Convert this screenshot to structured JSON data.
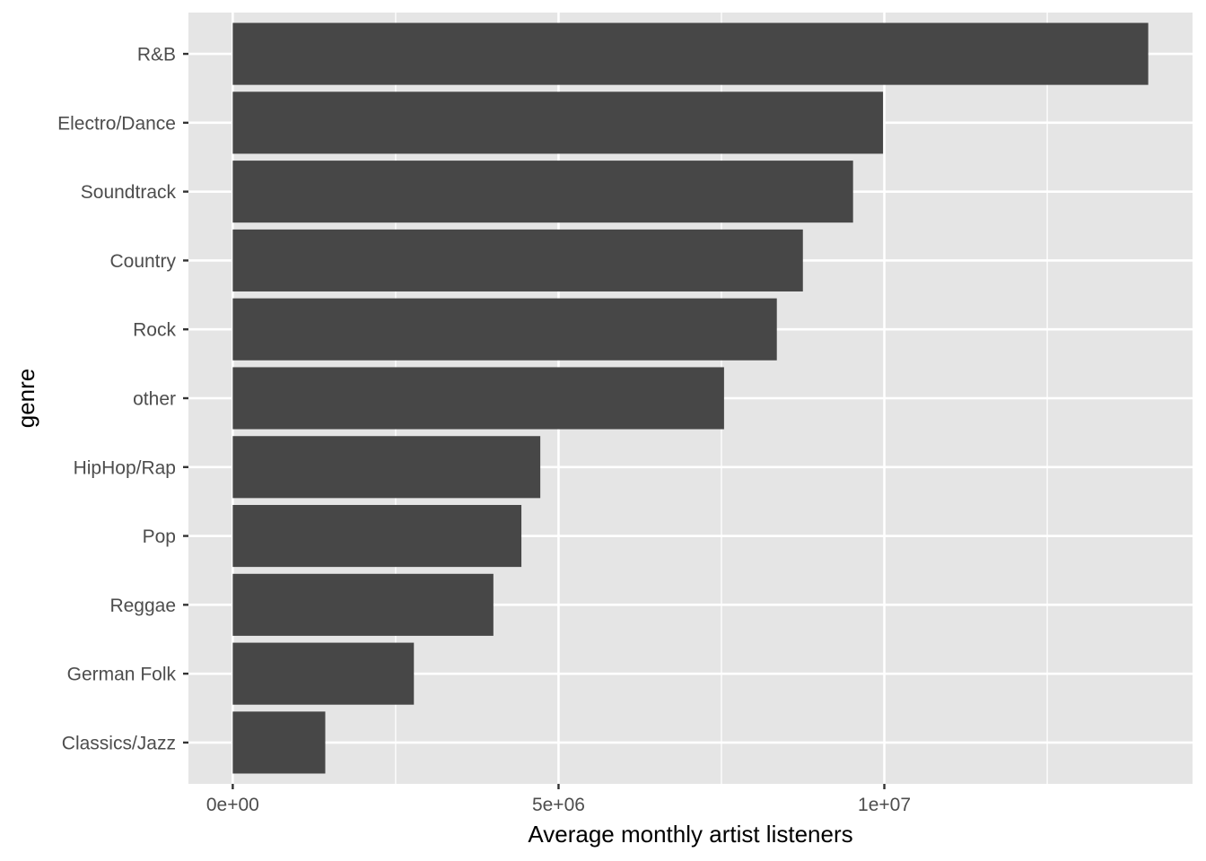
{
  "chart_data": {
    "type": "bar",
    "orientation": "horizontal",
    "title": "",
    "xlabel": "Average monthly artist listeners",
    "ylabel": "genre",
    "categories": [
      "R&B",
      "Electro/Dance",
      "Soundtrack",
      "Country",
      "Rock",
      "other",
      "HipHop/Rap",
      "Pop",
      "Reggae",
      "German Folk",
      "Classics/Jazz"
    ],
    "values": [
      14050000,
      9980000,
      9520000,
      8750000,
      8350000,
      7540000,
      4720000,
      4430000,
      4000000,
      2780000,
      1420000
    ],
    "xlim": [
      -680000,
      14730000
    ],
    "x_ticks": [
      0,
      5000000,
      10000000
    ],
    "x_tick_labels": [
      "0e+00",
      "5e+06",
      "1e+07"
    ],
    "grid": true,
    "bar_color": "#474747",
    "panel_color": "#e5e5e5",
    "grid_color": "#ffffff"
  }
}
